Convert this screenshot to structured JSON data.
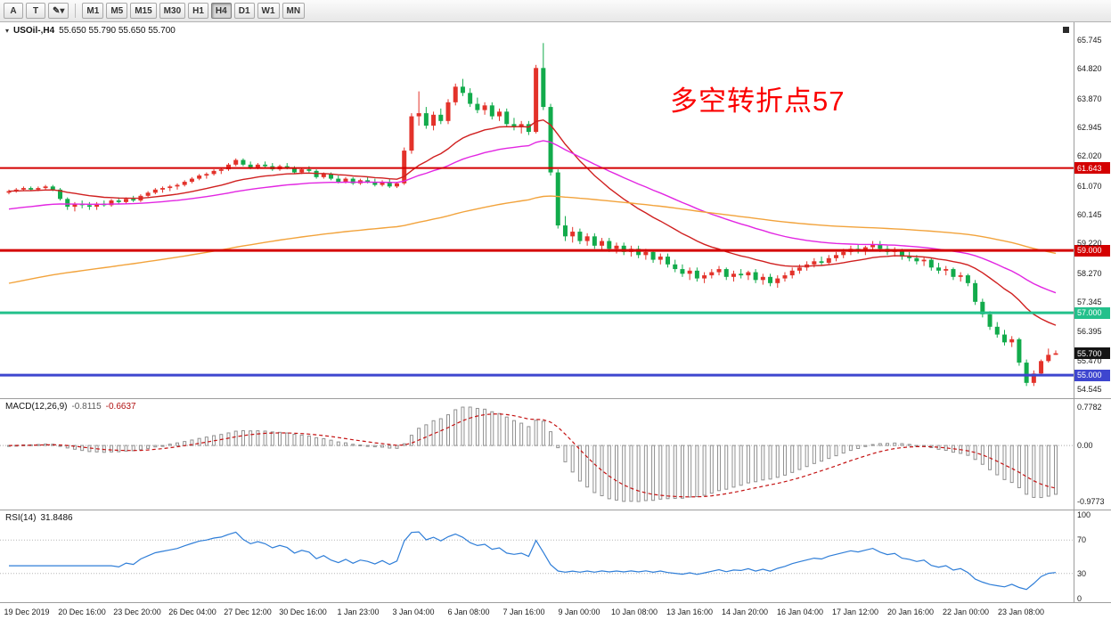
{
  "toolbar": {
    "left_buttons": [
      {
        "name": "cursor-tool-button",
        "label": "A"
      },
      {
        "name": "text-tool-button",
        "label": "T"
      },
      {
        "name": "drawing-tools-dropdown",
        "label": "✎▾"
      }
    ],
    "timeframes": [
      {
        "label": "M1"
      },
      {
        "label": "M5"
      },
      {
        "label": "M15"
      },
      {
        "label": "M30"
      },
      {
        "label": "H1"
      },
      {
        "label": "H4",
        "active": true
      },
      {
        "label": "D1"
      },
      {
        "label": "W1"
      },
      {
        "label": "MN"
      }
    ]
  },
  "chart": {
    "title_symbol": "USOil-,H4",
    "title_ohlc": "55.650 55.790 55.650 55.700",
    "annotation": {
      "text": "多空转折点57",
      "color": "#fb0000"
    }
  },
  "chart_data": {
    "type": "candlestick",
    "symbol": "USOil-",
    "timeframe": "H4",
    "title": "USOil-,H4 55.650 55.790 55.650 55.700",
    "up_color": "#e3322a",
    "down_color": "#12ab4b",
    "price_axis": {
      "ticks": [
        65.745,
        64.82,
        63.87,
        62.945,
        62.02,
        61.07,
        60.145,
        59.22,
        58.27,
        57.345,
        56.395,
        55.47,
        54.545
      ]
    },
    "time_axis": [
      "19 Dec 2019",
      "20 Dec 16:00",
      "23 Dec 20:00",
      "26 Dec 04:00",
      "27 Dec 12:00",
      "30 Dec 16:00",
      "1 Jan 23:00",
      "3 Jan 04:00",
      "6 Jan 08:00",
      "7 Jan 16:00",
      "9 Jan 00:00",
      "10 Jan 08:00",
      "13 Jan 16:00",
      "14 Jan 20:00",
      "16 Jan 04:00",
      "17 Jan 12:00",
      "20 Jan 16:00",
      "22 Jan 00:00",
      "23 Jan 08:00"
    ],
    "hlines": [
      {
        "price": 61.643,
        "label": "61.643",
        "color": "#d40000",
        "width": 2
      },
      {
        "price": 59.0,
        "label": "59.000",
        "color": "#d40000",
        "width": 3
      },
      {
        "price": 57.0,
        "label": "57.000",
        "color": "#23c08b",
        "width": 3
      },
      {
        "price": 55.0,
        "label": "55.000",
        "color": "#3e46cf",
        "width": 3
      }
    ],
    "current_price": {
      "value": 55.7,
      "label": "55.700",
      "bg": "#141414"
    },
    "mas": [
      {
        "name": "ma-fast",
        "period": 20,
        "color": "#d02020",
        "seed_offset": 0
      },
      {
        "name": "ma-medium",
        "period": 45,
        "color": "#e226e2",
        "seed_offset": -0.6
      },
      {
        "name": "ma-slow",
        "period": 130,
        "color": "#f2a33c",
        "seed_offset": -3.0
      }
    ],
    "macd": {
      "label": "MACD(12,26,9)",
      "main_value": "-0.8115",
      "signal_value": "-0.6637",
      "fast": 12,
      "slow": 26,
      "signal": 9,
      "scale_top": "0.7782",
      "scale_zero": "0.00",
      "scale_bottom": "-0.9773",
      "hist_color": "#909090",
      "signal_color": "#c41212"
    },
    "rsi": {
      "label": "RSI(14)",
      "value": "31.8486",
      "period": 14,
      "color": "#2f7ed8",
      "levels": [
        100,
        70,
        30,
        0
      ]
    },
    "candles": [
      [
        60.85,
        60.95,
        60.8,
        60.9
      ],
      [
        60.9,
        61.0,
        60.85,
        60.95
      ],
      [
        60.95,
        61.05,
        60.9,
        61.0
      ],
      [
        61.0,
        61.05,
        60.9,
        60.95
      ],
      [
        60.95,
        61.05,
        60.9,
        61.0
      ],
      [
        61.0,
        61.1,
        60.95,
        61.05
      ],
      [
        61.05,
        61.1,
        60.9,
        60.95
      ],
      [
        60.95,
        61.0,
        60.6,
        60.65
      ],
      [
        60.65,
        60.7,
        60.3,
        60.4
      ],
      [
        60.4,
        60.55,
        60.25,
        60.5
      ],
      [
        60.5,
        60.6,
        60.35,
        60.45
      ],
      [
        60.45,
        60.55,
        60.3,
        60.4
      ],
      [
        60.4,
        60.55,
        60.3,
        60.5
      ],
      [
        60.5,
        60.6,
        60.4,
        60.45
      ],
      [
        60.45,
        60.65,
        60.4,
        60.6
      ],
      [
        60.6,
        60.7,
        60.5,
        60.55
      ],
      [
        60.55,
        60.7,
        60.5,
        60.65
      ],
      [
        60.65,
        60.75,
        60.55,
        60.6
      ],
      [
        60.6,
        60.8,
        60.55,
        60.75
      ],
      [
        60.75,
        60.9,
        60.7,
        60.85
      ],
      [
        60.85,
        61.0,
        60.8,
        60.95
      ],
      [
        60.95,
        61.05,
        60.85,
        61.0
      ],
      [
        61.0,
        61.1,
        60.9,
        61.05
      ],
      [
        61.05,
        61.15,
        60.95,
        61.1
      ],
      [
        61.1,
        61.25,
        61.05,
        61.2
      ],
      [
        61.2,
        61.35,
        61.15,
        61.3
      ],
      [
        61.3,
        61.45,
        61.25,
        61.4
      ],
      [
        61.4,
        61.5,
        61.3,
        61.45
      ],
      [
        61.45,
        61.6,
        61.4,
        61.55
      ],
      [
        61.55,
        61.65,
        61.45,
        61.6
      ],
      [
        61.6,
        61.8,
        61.55,
        61.75
      ],
      [
        61.75,
        61.95,
        61.7,
        61.9
      ],
      [
        61.9,
        61.95,
        61.7,
        61.75
      ],
      [
        61.75,
        61.85,
        61.6,
        61.65
      ],
      [
        61.65,
        61.8,
        61.6,
        61.75
      ],
      [
        61.75,
        61.85,
        61.65,
        61.7
      ],
      [
        61.7,
        61.8,
        61.55,
        61.6
      ],
      [
        61.6,
        61.75,
        61.55,
        61.7
      ],
      [
        61.7,
        61.8,
        61.6,
        61.65
      ],
      [
        61.65,
        61.7,
        61.45,
        61.5
      ],
      [
        61.5,
        61.65,
        61.45,
        61.6
      ],
      [
        61.6,
        61.7,
        61.5,
        61.55
      ],
      [
        61.55,
        61.6,
        61.3,
        61.35
      ],
      [
        61.35,
        61.5,
        61.3,
        61.45
      ],
      [
        61.45,
        61.5,
        61.25,
        61.3
      ],
      [
        61.3,
        61.4,
        61.15,
        61.2
      ],
      [
        61.2,
        61.35,
        61.15,
        61.3
      ],
      [
        61.3,
        61.35,
        61.1,
        61.15
      ],
      [
        61.15,
        61.3,
        61.1,
        61.25
      ],
      [
        61.25,
        61.35,
        61.15,
        61.2
      ],
      [
        61.2,
        61.3,
        61.05,
        61.1
      ],
      [
        61.1,
        61.25,
        61.05,
        61.2
      ],
      [
        61.2,
        61.3,
        61.0,
        61.05
      ],
      [
        61.05,
        61.2,
        61.0,
        61.15
      ],
      [
        61.15,
        62.3,
        61.1,
        62.2
      ],
      [
        62.2,
        63.4,
        62.1,
        63.3
      ],
      [
        63.3,
        64.1,
        63.0,
        63.4
      ],
      [
        63.4,
        63.6,
        62.9,
        63.0
      ],
      [
        63.0,
        63.45,
        62.85,
        63.35
      ],
      [
        63.35,
        63.55,
        63.05,
        63.15
      ],
      [
        63.15,
        63.85,
        63.05,
        63.75
      ],
      [
        63.75,
        64.35,
        63.65,
        64.25
      ],
      [
        64.25,
        64.5,
        63.95,
        64.05
      ],
      [
        64.05,
        64.2,
        63.6,
        63.7
      ],
      [
        63.7,
        63.9,
        63.4,
        63.5
      ],
      [
        63.5,
        63.75,
        63.35,
        63.65
      ],
      [
        63.65,
        63.75,
        63.2,
        63.3
      ],
      [
        63.3,
        63.55,
        63.15,
        63.45
      ],
      [
        63.45,
        63.55,
        62.95,
        63.05
      ],
      [
        63.05,
        63.25,
        62.85,
        62.95
      ],
      [
        62.95,
        63.15,
        62.75,
        63.05
      ],
      [
        63.05,
        63.15,
        62.7,
        62.8
      ],
      [
        62.8,
        64.95,
        62.75,
        64.85
      ],
      [
        64.85,
        65.65,
        63.5,
        63.6
      ],
      [
        63.6,
        63.7,
        61.4,
        61.5
      ],
      [
        61.5,
        61.6,
        59.7,
        59.8
      ],
      [
        59.8,
        60.1,
        59.3,
        59.45
      ],
      [
        59.45,
        59.75,
        59.25,
        59.6
      ],
      [
        59.6,
        59.7,
        59.2,
        59.3
      ],
      [
        59.3,
        59.55,
        59.15,
        59.45
      ],
      [
        59.45,
        59.55,
        59.05,
        59.15
      ],
      [
        59.15,
        59.4,
        59.0,
        59.3
      ],
      [
        59.3,
        59.4,
        58.95,
        59.05
      ],
      [
        59.05,
        59.25,
        58.9,
        59.15
      ],
      [
        59.15,
        59.25,
        58.85,
        58.95
      ],
      [
        58.95,
        59.15,
        58.8,
        59.05
      ],
      [
        59.05,
        59.15,
        58.75,
        58.85
      ],
      [
        58.85,
        59.05,
        58.7,
        58.95
      ],
      [
        58.95,
        59.0,
        58.6,
        58.7
      ],
      [
        58.7,
        58.9,
        58.55,
        58.8
      ],
      [
        58.8,
        58.9,
        58.45,
        58.55
      ],
      [
        58.55,
        58.7,
        58.3,
        58.4
      ],
      [
        58.4,
        58.55,
        58.15,
        58.25
      ],
      [
        58.25,
        58.45,
        58.05,
        58.35
      ],
      [
        58.35,
        58.45,
        58.0,
        58.1
      ],
      [
        58.1,
        58.3,
        57.95,
        58.2
      ],
      [
        58.2,
        58.4,
        58.1,
        58.3
      ],
      [
        58.3,
        58.5,
        58.2,
        58.4
      ],
      [
        58.4,
        58.45,
        58.05,
        58.15
      ],
      [
        58.15,
        58.35,
        58.0,
        58.25
      ],
      [
        58.25,
        58.4,
        58.1,
        58.2
      ],
      [
        58.2,
        58.35,
        58.05,
        58.3
      ],
      [
        58.3,
        58.4,
        57.95,
        58.05
      ],
      [
        58.05,
        58.25,
        57.9,
        58.15
      ],
      [
        58.15,
        58.25,
        57.85,
        57.95
      ],
      [
        57.95,
        58.2,
        57.8,
        58.1
      ],
      [
        58.1,
        58.3,
        58.0,
        58.2
      ],
      [
        58.2,
        58.45,
        58.1,
        58.35
      ],
      [
        58.35,
        58.55,
        58.25,
        58.45
      ],
      [
        58.45,
        58.65,
        58.35,
        58.55
      ],
      [
        58.55,
        58.75,
        58.45,
        58.65
      ],
      [
        58.65,
        58.8,
        58.5,
        58.6
      ],
      [
        58.6,
        58.85,
        58.55,
        58.75
      ],
      [
        58.75,
        58.95,
        58.65,
        58.85
      ],
      [
        58.85,
        59.05,
        58.75,
        58.95
      ],
      [
        58.95,
        59.15,
        58.85,
        59.05
      ],
      [
        59.05,
        59.2,
        58.9,
        59.0
      ],
      [
        59.0,
        59.15,
        58.85,
        59.1
      ],
      [
        59.1,
        59.3,
        59.0,
        59.2
      ],
      [
        59.2,
        59.3,
        58.95,
        59.05
      ],
      [
        59.05,
        59.15,
        58.85,
        58.95
      ],
      [
        58.95,
        59.1,
        58.8,
        59.0
      ],
      [
        59.0,
        59.05,
        58.7,
        58.8
      ],
      [
        58.8,
        58.95,
        58.65,
        58.75
      ],
      [
        58.75,
        58.85,
        58.55,
        58.65
      ],
      [
        58.65,
        58.8,
        58.5,
        58.7
      ],
      [
        58.7,
        58.75,
        58.35,
        58.45
      ],
      [
        58.45,
        58.6,
        58.25,
        58.35
      ],
      [
        58.35,
        58.5,
        58.2,
        58.4
      ],
      [
        58.4,
        58.45,
        58.05,
        58.15
      ],
      [
        58.15,
        58.3,
        58.0,
        58.2
      ],
      [
        58.2,
        58.25,
        57.85,
        57.95
      ],
      [
        57.95,
        58.05,
        57.25,
        57.35
      ],
      [
        57.35,
        57.45,
        56.85,
        56.95
      ],
      [
        56.95,
        57.05,
        56.45,
        56.55
      ],
      [
        56.55,
        56.7,
        56.2,
        56.3
      ],
      [
        56.3,
        56.45,
        55.95,
        56.05
      ],
      [
        56.05,
        56.25,
        55.9,
        56.15
      ],
      [
        56.15,
        56.2,
        55.3,
        55.4
      ],
      [
        55.4,
        55.5,
        54.65,
        54.75
      ],
      [
        54.75,
        55.15,
        54.65,
        55.05
      ],
      [
        55.05,
        55.5,
        55.0,
        55.45
      ],
      [
        55.45,
        55.85,
        55.4,
        55.65
      ],
      [
        55.65,
        55.79,
        55.65,
        55.7
      ]
    ]
  }
}
